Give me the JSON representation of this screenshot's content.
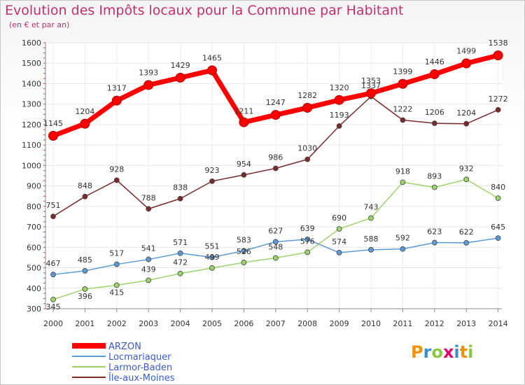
{
  "title": "Evolution des Impôts locaux pour la Commune par Habitant",
  "subtitle": "(en € et par an)",
  "logo": {
    "text": "Proxiti",
    "colors": [
      "#f39200",
      "#3a8fd0",
      "#8cc63f",
      "#e0006a",
      "#3a8fd0",
      "#f39200",
      "#8cc63f"
    ]
  },
  "chart_data": {
    "type": "line",
    "title": "Evolution des Impôts locaux pour la Commune par Habitant",
    "ylabel": "(en € et par an)",
    "xlabel": "",
    "ylim": [
      300,
      1600
    ],
    "yticks": [
      300,
      400,
      500,
      600,
      700,
      800,
      900,
      1000,
      1100,
      1200,
      1300,
      1400,
      1500,
      1600
    ],
    "categories": [
      "2000",
      "2001",
      "2002",
      "2003",
      "2004",
      "2005",
      "2006",
      "2007",
      "2008",
      "2009",
      "2010",
      "2011",
      "2012",
      "2013",
      "2014"
    ],
    "legend_position": "bottom-left",
    "series": [
      {
        "name": "ARZON",
        "color": "#ff0000",
        "values": [
          1145,
          1204,
          1317,
          1393,
          1429,
          1465,
          1211,
          1247,
          1282,
          1320,
          1353,
          1399,
          1446,
          1499,
          1538
        ]
      },
      {
        "name": "Locmariaquer",
        "color": "#5b9bd5",
        "values": [
          467,
          485,
          517,
          541,
          571,
          551,
          583,
          627,
          639,
          574,
          588,
          592,
          623,
          622,
          645
        ]
      },
      {
        "name": "Larmor-Baden",
        "color": "#9bd46a",
        "values": [
          345,
          396,
          415,
          439,
          472,
          499,
          526,
          548,
          576,
          690,
          743,
          918,
          893,
          932,
          840
        ]
      },
      {
        "name": "Île-aux-Moines",
        "color": "#7a2a2a",
        "values": [
          751,
          848,
          928,
          788,
          838,
          923,
          954,
          986,
          1030,
          1193,
          1337,
          1222,
          1206,
          1204,
          1272
        ]
      }
    ]
  }
}
